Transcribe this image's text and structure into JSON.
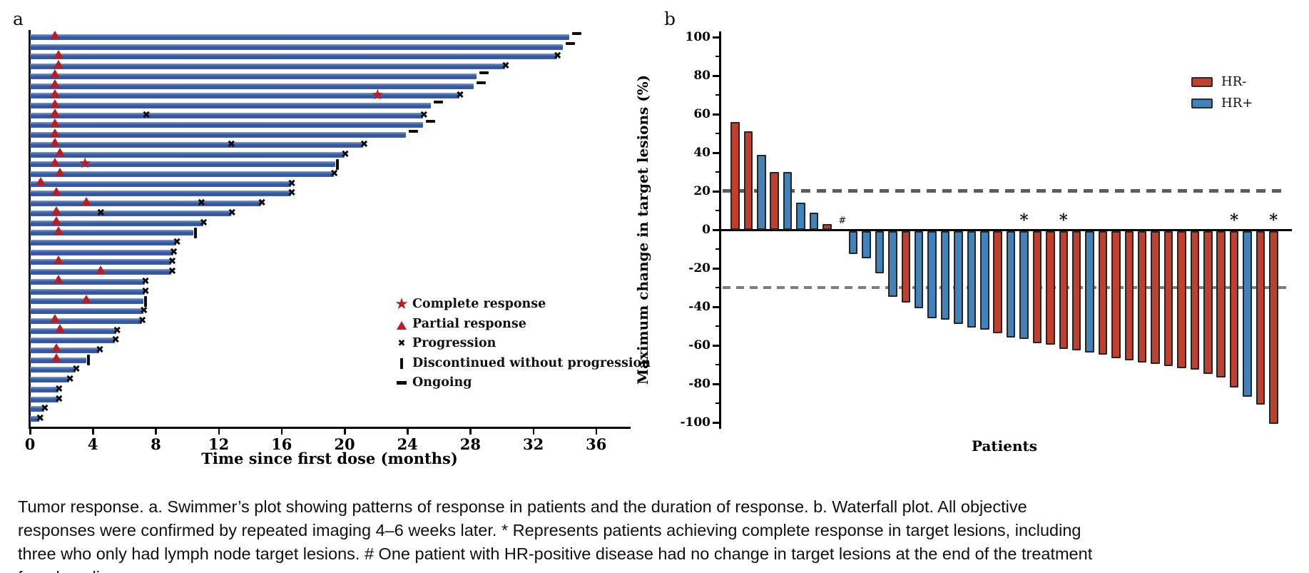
{
  "ui": {
    "caption": "Tumor response. a. Swimmer’s plot showing patterns of response in patients and the duration of response. b. Waterfall plot. All objective responses were confirmed by repeated imaging 4–6 weeks later. * Represents patients achieving complete response in target lesions, including three who only had lymph node target lesions. # One patient with HR-positive disease had no change in target lesions at the end of the treatment from baseline.",
    "panel_a": {
      "label": "a",
      "x_title": "Time since first dose (months)",
      "legend": [
        {
          "icon": "star-icon",
          "label": "Complete response"
        },
        {
          "icon": "triangle-icon",
          "label": "Partial response"
        },
        {
          "icon": "cross-icon",
          "label": "Progression"
        },
        {
          "icon": "tick-icon",
          "label": "Discontinued without progression"
        },
        {
          "icon": "dash-icon",
          "label": "Ongoing"
        }
      ]
    },
    "panel_b": {
      "label": "b",
      "y_title": "Maximum change in target lesions (%)",
      "x_title": "Patients",
      "legend": [
        {
          "label": "HR-",
          "color": "#c0402f"
        },
        {
          "label": "HR+",
          "color": "#4182ba"
        }
      ]
    }
  },
  "colors": {
    "swimmer_bar": "#3a5ca3",
    "hr_negative": "#c0402f",
    "hr_positive": "#4182ba",
    "marker_red": "#b81f25",
    "bar_outline": "#262626",
    "dashed_reference": "#5c5c5c"
  },
  "chart_data": [
    {
      "type": "bar",
      "name": "swimmers_plot",
      "orientation": "horizontal",
      "xlabel": "Time since first dose (months)",
      "x_ticks": [
        0,
        4,
        8,
        12,
        16,
        20,
        24,
        28,
        32,
        36
      ],
      "xlim": [
        0,
        38
      ],
      "legend": [
        "Complete response",
        "Partial response",
        "Progression",
        "Discontinued without progression",
        "Ongoing"
      ],
      "patients": [
        {
          "months": 34.3,
          "end": "ongoing",
          "partial_response_at": 1.6,
          "complete_response_at": null,
          "progression_at": null
        },
        {
          "months": 33.9,
          "end": "ongoing",
          "partial_response_at": null,
          "complete_response_at": null,
          "progression_at": null
        },
        {
          "months": 33.5,
          "end": "progression",
          "partial_response_at": 1.8,
          "complete_response_at": null,
          "progression_at": null
        },
        {
          "months": 30.2,
          "end": "progression",
          "partial_response_at": 1.8,
          "complete_response_at": null,
          "progression_at": null
        },
        {
          "months": 28.4,
          "end": "ongoing",
          "partial_response_at": 1.6,
          "complete_response_at": null,
          "progression_at": null
        },
        {
          "months": 28.2,
          "end": "ongoing",
          "partial_response_at": 1.6,
          "complete_response_at": null,
          "progression_at": null
        },
        {
          "months": 27.3,
          "end": "progression",
          "partial_response_at": 1.6,
          "complete_response_at": 22.1,
          "progression_at": null
        },
        {
          "months": 25.5,
          "end": "ongoing",
          "partial_response_at": 1.6,
          "complete_response_at": null,
          "progression_at": null
        },
        {
          "months": 25.0,
          "end": "progression",
          "partial_response_at": 1.6,
          "complete_response_at": null,
          "progression_at": 7.4
        },
        {
          "months": 25.0,
          "end": "ongoing",
          "partial_response_at": 1.6,
          "complete_response_at": null,
          "progression_at": null
        },
        {
          "months": 23.9,
          "end": "ongoing",
          "partial_response_at": 1.6,
          "complete_response_at": null,
          "progression_at": null
        },
        {
          "months": 21.2,
          "end": "progression",
          "partial_response_at": 1.6,
          "complete_response_at": null,
          "progression_at": 12.8
        },
        {
          "months": 20.0,
          "end": "progression",
          "partial_response_at": 1.9,
          "complete_response_at": null,
          "progression_at": null
        },
        {
          "months": 19.4,
          "end": "discontinued",
          "partial_response_at": 1.6,
          "complete_response_at": 3.5,
          "progression_at": null
        },
        {
          "months": 19.3,
          "end": "progression",
          "partial_response_at": 1.9,
          "complete_response_at": null,
          "progression_at": null
        },
        {
          "months": 16.6,
          "end": "progression",
          "partial_response_at": 0.7,
          "complete_response_at": null,
          "progression_at": null
        },
        {
          "months": 16.6,
          "end": "progression",
          "partial_response_at": 1.7,
          "complete_response_at": null,
          "progression_at": null
        },
        {
          "months": 14.7,
          "end": "progression",
          "partial_response_at": 3.6,
          "complete_response_at": null,
          "progression_at": 10.9
        },
        {
          "months": 12.8,
          "end": "progression",
          "partial_response_at": 1.7,
          "complete_response_at": null,
          "progression_at": 4.5
        },
        {
          "months": 11.0,
          "end": "progression",
          "partial_response_at": 1.7,
          "complete_response_at": null,
          "progression_at": null
        },
        {
          "months": 10.4,
          "end": "discontinued",
          "partial_response_at": 1.8,
          "complete_response_at": null,
          "progression_at": null
        },
        {
          "months": 9.3,
          "end": "progression",
          "partial_response_at": null,
          "complete_response_at": null,
          "progression_at": null
        },
        {
          "months": 9.1,
          "end": "progression",
          "partial_response_at": null,
          "complete_response_at": null,
          "progression_at": null
        },
        {
          "months": 9.0,
          "end": "progression",
          "partial_response_at": 1.8,
          "complete_response_at": null,
          "progression_at": null
        },
        {
          "months": 9.0,
          "end": "progression",
          "partial_response_at": 4.5,
          "complete_response_at": null,
          "progression_at": null
        },
        {
          "months": 7.3,
          "end": "progression",
          "partial_response_at": 1.8,
          "complete_response_at": null,
          "progression_at": null
        },
        {
          "months": 7.3,
          "end": "progression",
          "partial_response_at": null,
          "complete_response_at": null,
          "progression_at": null
        },
        {
          "months": 7.2,
          "end": "discontinued",
          "partial_response_at": 3.6,
          "complete_response_at": null,
          "progression_at": null
        },
        {
          "months": 7.2,
          "end": "progression",
          "partial_response_at": null,
          "complete_response_at": null,
          "progression_at": null
        },
        {
          "months": 7.1,
          "end": "progression",
          "partial_response_at": 1.6,
          "complete_response_at": null,
          "progression_at": null
        },
        {
          "months": 5.5,
          "end": "progression",
          "partial_response_at": 1.9,
          "complete_response_at": null,
          "progression_at": null
        },
        {
          "months": 5.4,
          "end": "progression",
          "partial_response_at": null,
          "complete_response_at": null,
          "progression_at": null
        },
        {
          "months": 4.4,
          "end": "progression",
          "partial_response_at": 1.7,
          "complete_response_at": null,
          "progression_at": null
        },
        {
          "months": 3.6,
          "end": "discontinued",
          "partial_response_at": 1.7,
          "complete_response_at": null,
          "progression_at": null
        },
        {
          "months": 2.9,
          "end": "progression",
          "partial_response_at": null,
          "complete_response_at": null,
          "progression_at": null
        },
        {
          "months": 2.5,
          "end": "progression",
          "partial_response_at": null,
          "complete_response_at": null,
          "progression_at": null
        },
        {
          "months": 1.8,
          "end": "progression",
          "partial_response_at": null,
          "complete_response_at": null,
          "progression_at": null
        },
        {
          "months": 1.8,
          "end": "progression",
          "partial_response_at": null,
          "complete_response_at": null,
          "progression_at": null
        },
        {
          "months": 0.9,
          "end": "progression",
          "partial_response_at": null,
          "complete_response_at": null,
          "progression_at": null
        },
        {
          "months": 0.6,
          "end": "progression",
          "partial_response_at": null,
          "complete_response_at": null,
          "progression_at": null
        }
      ]
    },
    {
      "type": "bar",
      "name": "waterfall_plot",
      "ylabel": "Maximum change in target lesions (%)",
      "xlabel": "Patients",
      "y_ticks": [
        100,
        80,
        60,
        40,
        20,
        0,
        -20,
        -40,
        -60,
        -80,
        -100
      ],
      "ylim": [
        -100,
        100
      ],
      "reference_lines": [
        20,
        -30
      ],
      "legend": [
        "HR-",
        "HR+"
      ],
      "patients": [
        {
          "pct": 56,
          "hr": "neg",
          "mark": null
        },
        {
          "pct": 51,
          "hr": "neg",
          "mark": null
        },
        {
          "pct": 39,
          "hr": "pos",
          "mark": null
        },
        {
          "pct": 30,
          "hr": "neg",
          "mark": null
        },
        {
          "pct": 30,
          "hr": "pos",
          "mark": null
        },
        {
          "pct": 14,
          "hr": "pos",
          "mark": null
        },
        {
          "pct": 9,
          "hr": "pos",
          "mark": null
        },
        {
          "pct": 3,
          "hr": "neg",
          "mark": null
        },
        {
          "pct": 0,
          "hr": "pos",
          "mark": "#"
        },
        {
          "pct": -12,
          "hr": "pos",
          "mark": null
        },
        {
          "pct": -14,
          "hr": "pos",
          "mark": null
        },
        {
          "pct": -22,
          "hr": "pos",
          "mark": null
        },
        {
          "pct": -34,
          "hr": "pos",
          "mark": null
        },
        {
          "pct": -37,
          "hr": "neg",
          "mark": null
        },
        {
          "pct": -40,
          "hr": "pos",
          "mark": null
        },
        {
          "pct": -45,
          "hr": "pos",
          "mark": null
        },
        {
          "pct": -46,
          "hr": "pos",
          "mark": null
        },
        {
          "pct": -48,
          "hr": "pos",
          "mark": null
        },
        {
          "pct": -50,
          "hr": "pos",
          "mark": null
        },
        {
          "pct": -51,
          "hr": "pos",
          "mark": null
        },
        {
          "pct": -53,
          "hr": "neg",
          "mark": null
        },
        {
          "pct": -55,
          "hr": "pos",
          "mark": null
        },
        {
          "pct": -56,
          "hr": "pos",
          "mark": "*"
        },
        {
          "pct": -58,
          "hr": "neg",
          "mark": null
        },
        {
          "pct": -59,
          "hr": "neg",
          "mark": null
        },
        {
          "pct": -61,
          "hr": "neg",
          "mark": "*"
        },
        {
          "pct": -62,
          "hr": "neg",
          "mark": null
        },
        {
          "pct": -63,
          "hr": "pos",
          "mark": null
        },
        {
          "pct": -64,
          "hr": "neg",
          "mark": null
        },
        {
          "pct": -66,
          "hr": "neg",
          "mark": null
        },
        {
          "pct": -67,
          "hr": "neg",
          "mark": null
        },
        {
          "pct": -68,
          "hr": "neg",
          "mark": null
        },
        {
          "pct": -69,
          "hr": "neg",
          "mark": null
        },
        {
          "pct": -70,
          "hr": "neg",
          "mark": null
        },
        {
          "pct": -71,
          "hr": "neg",
          "mark": null
        },
        {
          "pct": -72,
          "hr": "neg",
          "mark": null
        },
        {
          "pct": -74,
          "hr": "neg",
          "mark": null
        },
        {
          "pct": -76,
          "hr": "neg",
          "mark": null
        },
        {
          "pct": -81,
          "hr": "neg",
          "mark": "*"
        },
        {
          "pct": -86,
          "hr": "pos",
          "mark": null
        },
        {
          "pct": -90,
          "hr": "neg",
          "mark": null
        },
        {
          "pct": -100,
          "hr": "neg",
          "mark": "*"
        }
      ]
    }
  ]
}
